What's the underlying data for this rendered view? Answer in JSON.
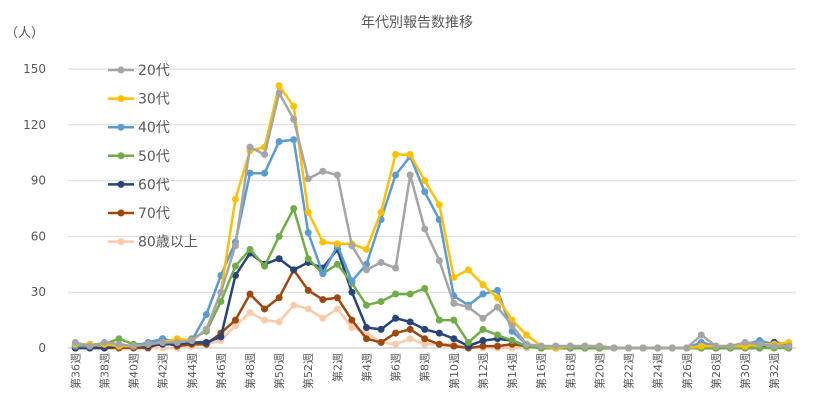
{
  "chart_data": {
    "type": "line",
    "title": "年代別報告数推移",
    "ylabel": "（人）",
    "ylim": [
      0,
      150
    ],
    "yticks": [
      0,
      30,
      60,
      90,
      120,
      150
    ],
    "grid": true,
    "legend_position": "top-left",
    "categories": [
      "第36週",
      "第37週",
      "第38週",
      "第39週",
      "第40週",
      "第41週",
      "第42週",
      "第43週",
      "第44週",
      "第45週",
      "第46週",
      "第47週",
      "第48週",
      "第49週",
      "第50週",
      "第51週",
      "第52週",
      "第1週",
      "第2週",
      "第3週",
      "第4週",
      "第5週",
      "第6週",
      "第7週",
      "第8週",
      "第9週",
      "第10週",
      "第11週",
      "第12週",
      "第13週",
      "第14週",
      "第15週",
      "第16週",
      "第17週",
      "第18週",
      "第19週",
      "第20週",
      "第21週",
      "第22週",
      "第23週",
      "第24週",
      "第25週",
      "第26週",
      "第27週",
      "第28週",
      "第29週",
      "第30週",
      "第31週",
      "第32週",
      "第33週"
    ],
    "x_tick_labels": [
      "第36週",
      "第38週",
      "第40週",
      "第42週",
      "第44週",
      "第46週",
      "第48週",
      "第50週",
      "第52週",
      "第2週",
      "第4週",
      "第6週",
      "第8週",
      "第10週",
      "第12週",
      "第14週",
      "第16週",
      "第18週",
      "第20週",
      "第22週",
      "第24週",
      "第26週",
      "第28週",
      "第30週",
      "第32週"
    ],
    "series": [
      {
        "name": "20代",
        "color": "#a5a5a5",
        "values": [
          3,
          1,
          3,
          2,
          1,
          2,
          3,
          3,
          4,
          10,
          30,
          55,
          108,
          104,
          137,
          123,
          91,
          95,
          93,
          55,
          42,
          46,
          43,
          93,
          64,
          47,
          24,
          22,
          16,
          22,
          12,
          2,
          1,
          1,
          1,
          1,
          1,
          0,
          0,
          0,
          0,
          0,
          0,
          7,
          1,
          1,
          3,
          2,
          1,
          1
        ]
      },
      {
        "name": "30代",
        "color": "#ffc000",
        "values": [
          2,
          2,
          2,
          1,
          1,
          2,
          3,
          5,
          4,
          10,
          30,
          80,
          106,
          108,
          141,
          130,
          73,
          57,
          56,
          56,
          53,
          73,
          104,
          104,
          90,
          77,
          38,
          42,
          34,
          27,
          15,
          7,
          1,
          0,
          1,
          1,
          1,
          0,
          0,
          0,
          0,
          0,
          0,
          1,
          1,
          1,
          1,
          2,
          2,
          3
        ]
      },
      {
        "name": "40代",
        "color": "#5b9bd5",
        "values": [
          1,
          2,
          2,
          1,
          1,
          3,
          5,
          3,
          4,
          18,
          39,
          57,
          94,
          94,
          111,
          112,
          62,
          40,
          55,
          36,
          45,
          69,
          93,
          103,
          84,
          69,
          28,
          23,
          29,
          31,
          9,
          2,
          1,
          1,
          1,
          1,
          1,
          0,
          0,
          0,
          0,
          0,
          0,
          3,
          1,
          1,
          2,
          4,
          2,
          1
        ]
      },
      {
        "name": "50代",
        "color": "#70ad47",
        "values": [
          1,
          1,
          2,
          5,
          2,
          2,
          5,
          3,
          5,
          9,
          25,
          44,
          53,
          44,
          60,
          75,
          48,
          40,
          45,
          35,
          23,
          25,
          29,
          29,
          32,
          15,
          15,
          3,
          10,
          7,
          4,
          1,
          0,
          0,
          0,
          0,
          0,
          0,
          0,
          0,
          0,
          0,
          0,
          0,
          0,
          0,
          0,
          0,
          0,
          0
        ]
      },
      {
        "name": "60代",
        "color": "#264478",
        "values": [
          0,
          0,
          0,
          1,
          1,
          1,
          2,
          2,
          3,
          3,
          6,
          39,
          51,
          45,
          48,
          42,
          46,
          43,
          53,
          30,
          11,
          10,
          16,
          14,
          10,
          8,
          5,
          1,
          4,
          5,
          4,
          1,
          0,
          0,
          0,
          0,
          0,
          0,
          0,
          0,
          0,
          0,
          0,
          0,
          0,
          0,
          0,
          0,
          3,
          0
        ]
      },
      {
        "name": "70代",
        "color": "#9e480e",
        "values": [
          0,
          0,
          0,
          0,
          0,
          0,
          3,
          1,
          2,
          2,
          8,
          15,
          29,
          21,
          27,
          42,
          31,
          26,
          27,
          15,
          5,
          3,
          8,
          10,
          5,
          2,
          1,
          0,
          1,
          1,
          2,
          1,
          0,
          0,
          0,
          0,
          0,
          0,
          0,
          0,
          0,
          0,
          0,
          0,
          0,
          0,
          0,
          0,
          3,
          2
        ]
      },
      {
        "name": "80歳以上",
        "color": "#f8cbad",
        "values": [
          0,
          0,
          0,
          0,
          0,
          0,
          0,
          0,
          1,
          2,
          4,
          12,
          19,
          15,
          14,
          23,
          21,
          16,
          21,
          11,
          8,
          3,
          2,
          5,
          2,
          2,
          2,
          0,
          0,
          0,
          0,
          0,
          0,
          0,
          0,
          0,
          0,
          0,
          0,
          0,
          0,
          0,
          0,
          0,
          0,
          0,
          0,
          0,
          0,
          0
        ]
      }
    ]
  }
}
